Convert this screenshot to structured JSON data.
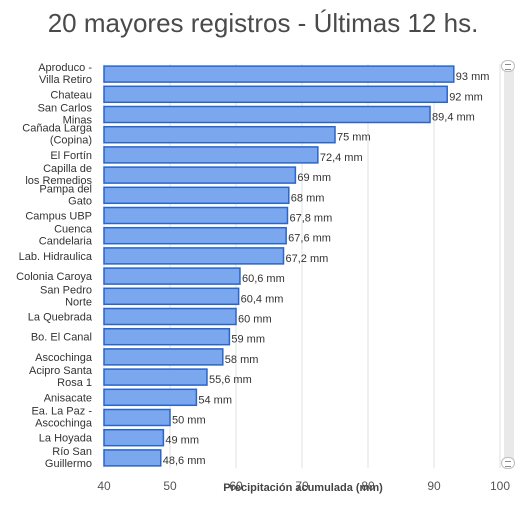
{
  "chart_data": {
    "type": "bar",
    "orientation": "horizontal",
    "title": "20 mayores registros - Últimas 12 hs.",
    "xlabel": "Precipitación acumulada (mm)",
    "ylabel": "",
    "xlim": [
      40,
      100
    ],
    "x_ticks": [
      "40",
      "50",
      "60",
      "70",
      "80",
      "90",
      "100"
    ],
    "grid": true,
    "categories": [
      [
        "Aproduco -",
        "Villa Retiro"
      ],
      [
        "Chateau"
      ],
      [
        "San Carlos",
        "Minas"
      ],
      [
        "Cañada Larga",
        "(Copina)"
      ],
      [
        "El Fortín"
      ],
      [
        "Capilla de",
        "los Remedios"
      ],
      [
        "Pampa del",
        "Gato"
      ],
      [
        "Campus UBP"
      ],
      [
        "Cuenca",
        "Candelaria"
      ],
      [
        "Lab. Hidraulica"
      ],
      [
        "Colonia Caroya"
      ],
      [
        "San Pedro",
        "Norte"
      ],
      [
        "La Quebrada"
      ],
      [
        "Bo. El Canal"
      ],
      [
        "Ascochinga"
      ],
      [
        "Acipro Santa",
        "Rosa 1"
      ],
      [
        "Anisacate"
      ],
      [
        "Ea. La Paz -",
        "Ascochinga"
      ],
      [
        "La Hoyada"
      ],
      [
        "Río San",
        "Guillermo"
      ]
    ],
    "values": [
      93,
      92,
      89.4,
      75,
      72.4,
      69,
      68,
      67.8,
      67.6,
      67.2,
      60.6,
      60.4,
      60,
      59,
      58,
      55.6,
      54,
      50,
      49,
      48.6
    ],
    "value_labels": [
      "93 mm",
      "92 mm",
      "89,4 mm",
      "75 mm",
      "72,4 mm",
      "69 mm",
      "68 mm",
      "67,8 mm",
      "67,6 mm",
      "67,2 mm",
      "60,6 mm",
      "60,4 mm",
      "60 mm",
      "59 mm",
      "58 mm",
      "55,6 mm",
      "54 mm",
      "50 mm",
      "49 mm",
      "48,6 mm"
    ],
    "colors": {
      "bar_fill": "#7aa7ee",
      "bar_stroke": "#2a65c9"
    }
  },
  "scrollbar": {
    "top_icon": "scroll-grip-icon",
    "bottom_icon": "scroll-grip-icon"
  }
}
